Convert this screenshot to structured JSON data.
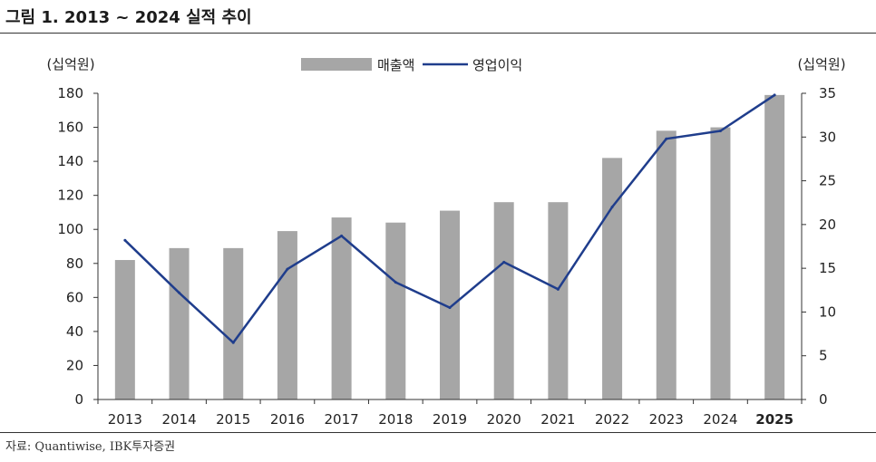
{
  "title": "그림 1. 2013 ~ 2024 실적 추이",
  "source": "자료: Quantiwise, IBK투자증권",
  "chart_data": {
    "type": "bar",
    "categories": [
      "2013",
      "2014",
      "2015",
      "2016",
      "2017",
      "2018",
      "2019",
      "2020",
      "2021",
      "2022",
      "2023",
      "2024",
      "2025"
    ],
    "highlight_category": "2025",
    "left_axis": {
      "unit": "(십억원)",
      "min": 0,
      "max": 180,
      "step": 20
    },
    "right_axis": {
      "unit": "(십억원)",
      "min": 0,
      "max": 35,
      "step": 5
    },
    "legend_placement": "top-center",
    "grid": false,
    "series": [
      {
        "name": "매출액",
        "type": "bar",
        "axis": "left",
        "color": "#a6a6a6",
        "values": [
          82,
          89,
          89,
          99,
          107,
          104,
          111,
          116,
          116,
          142,
          158,
          160,
          179
        ]
      },
      {
        "name": "영업이익",
        "type": "line",
        "axis": "right",
        "color": "#1f3d8c",
        "values": [
          18.2,
          12.2,
          6.5,
          14.9,
          18.7,
          13.4,
          10.5,
          15.7,
          12.6,
          22.0,
          29.8,
          30.7,
          34.8
        ]
      }
    ]
  }
}
